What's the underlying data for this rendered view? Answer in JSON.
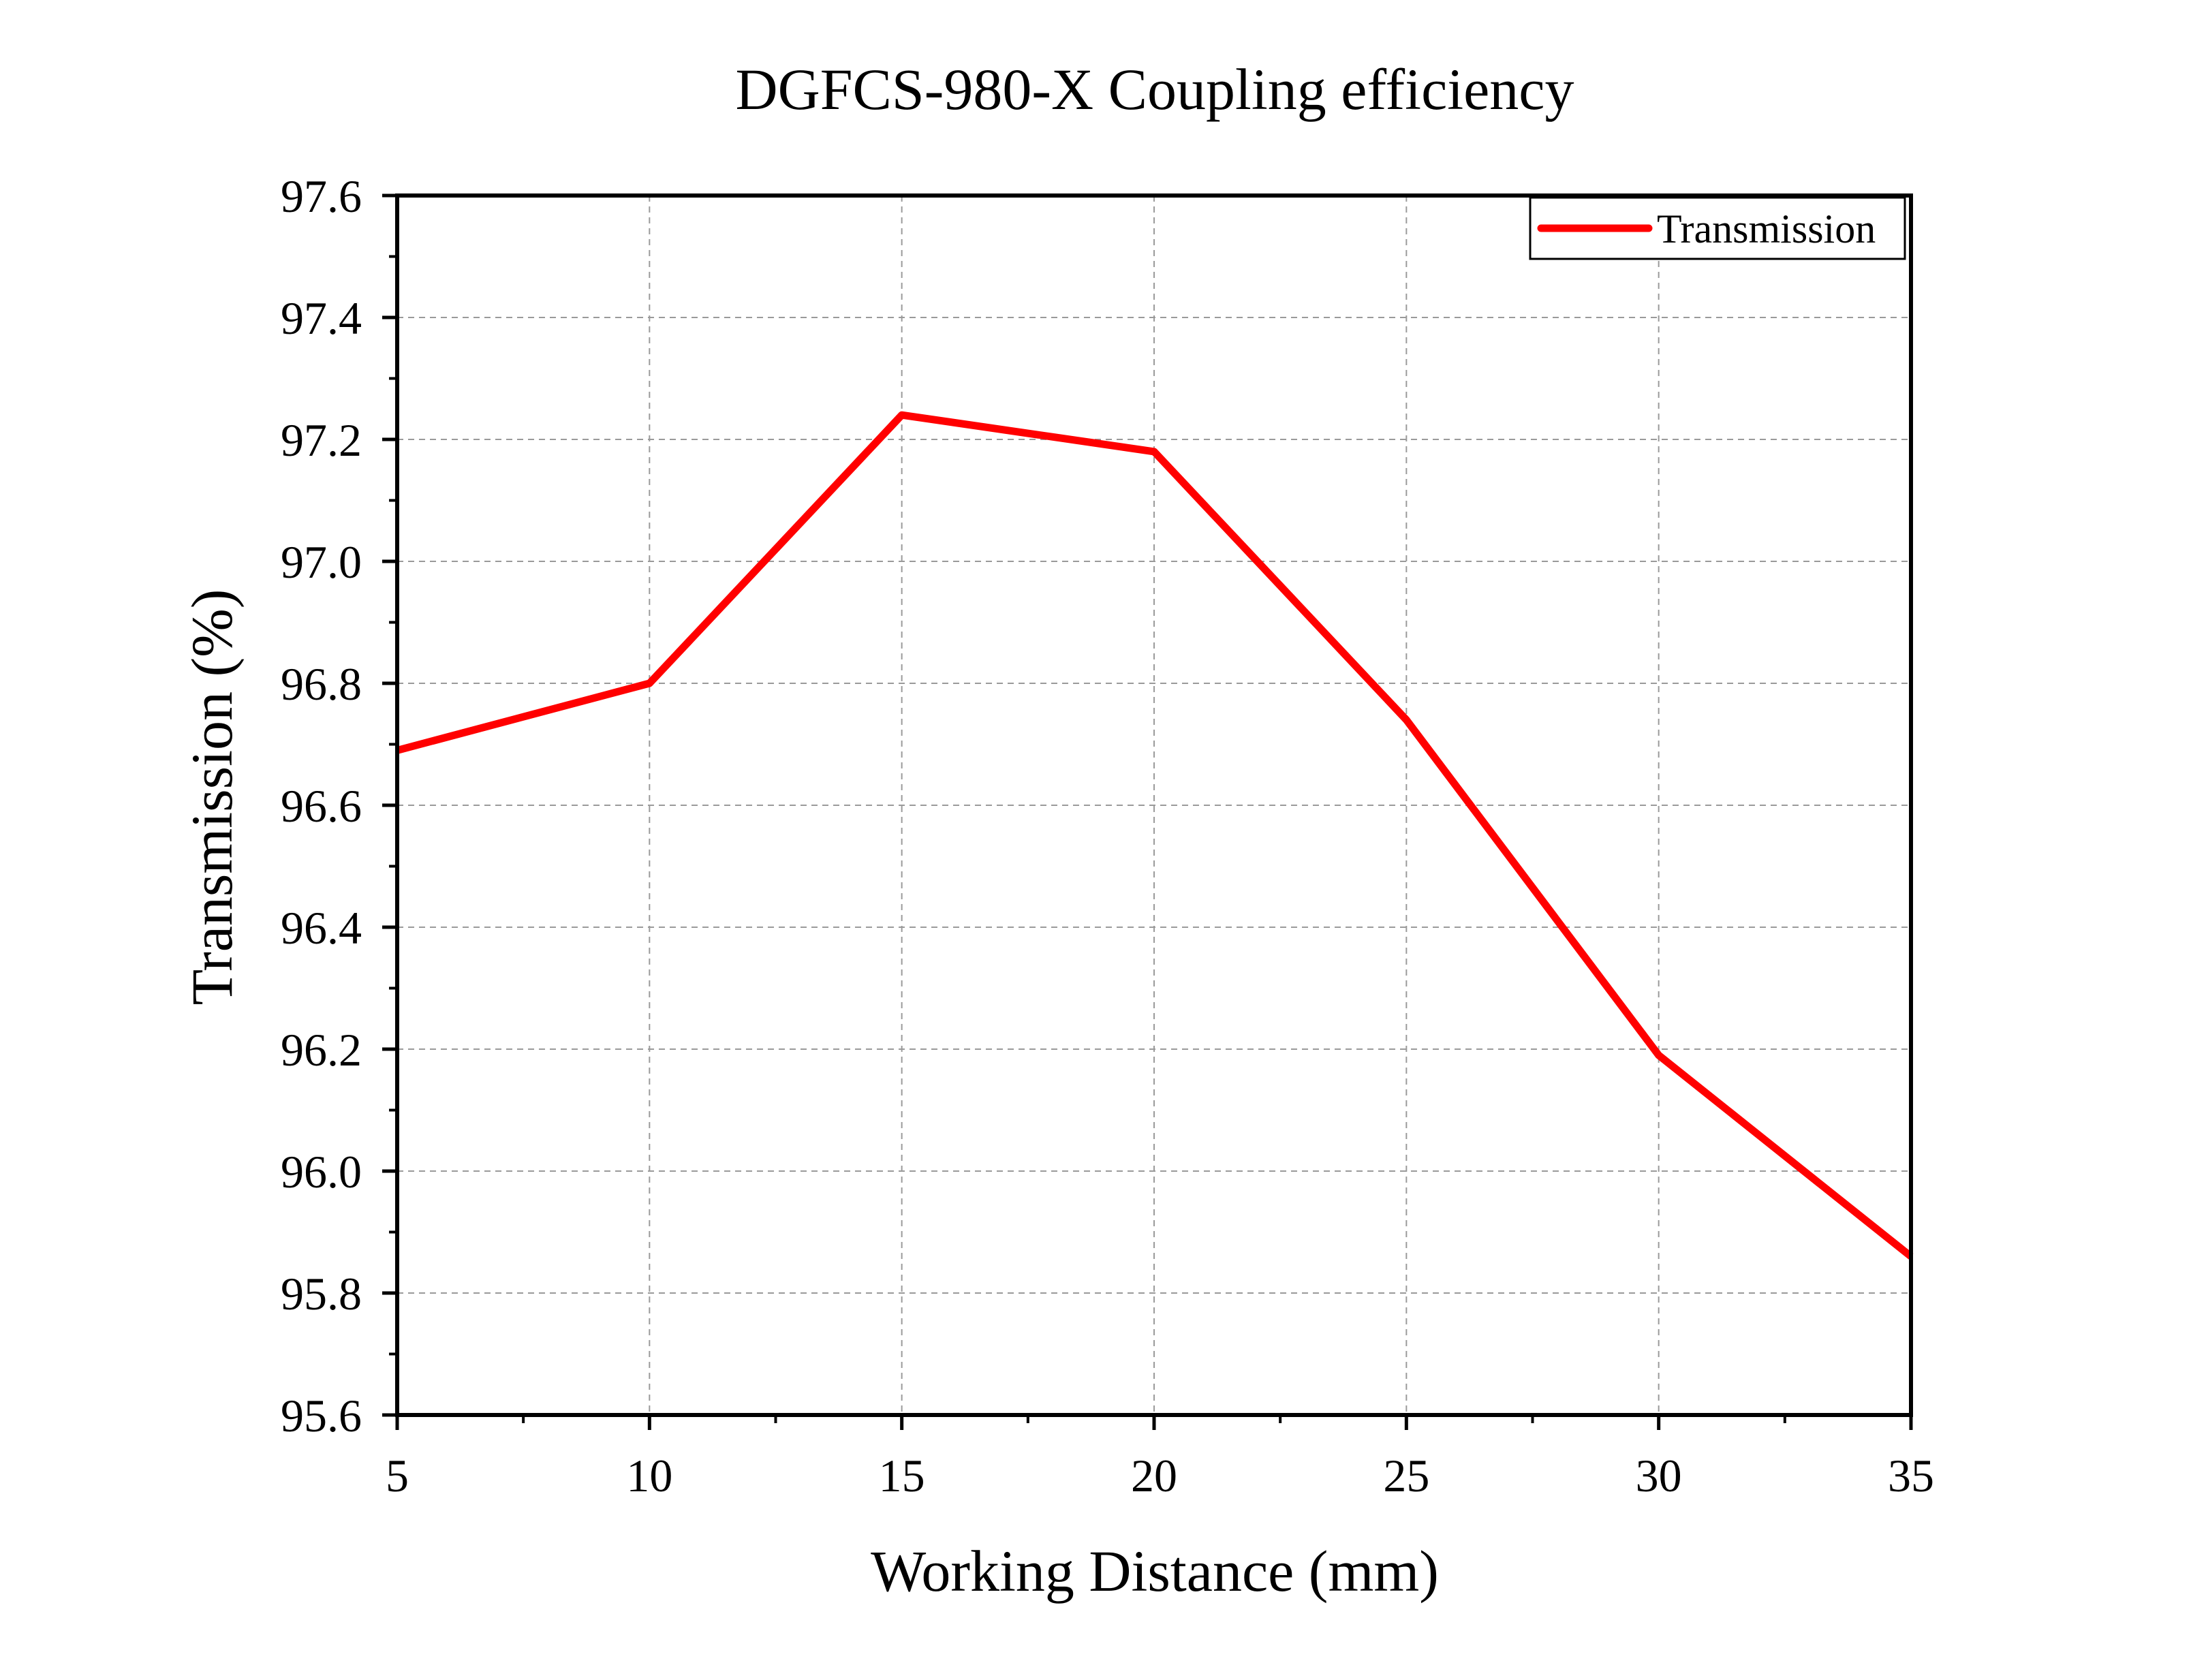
{
  "chart_data": {
    "type": "line",
    "title": "DGFCS-980-X Coupling efficiency",
    "xlabel": "Working Distance (mm)",
    "ylabel": "Transmission (%)",
    "xlim": [
      5,
      35
    ],
    "ylim": [
      95.6,
      97.6
    ],
    "x_ticks": [
      "5",
      "10",
      "15",
      "20",
      "25",
      "30",
      "35"
    ],
    "y_ticks": [
      "95.6",
      "95.8",
      "96.0",
      "96.2",
      "96.4",
      "96.6",
      "96.8",
      "97.0",
      "97.2",
      "97.4",
      "97.6"
    ],
    "x": [
      5,
      10,
      15,
      20,
      25,
      30,
      35
    ],
    "series": [
      {
        "name": "Transmission",
        "color": "#ff0000",
        "values": [
          96.69,
          96.8,
          97.24,
          97.18,
          96.74,
          96.19,
          95.86
        ]
      }
    ],
    "grid": true,
    "legend_position": "top-right"
  }
}
